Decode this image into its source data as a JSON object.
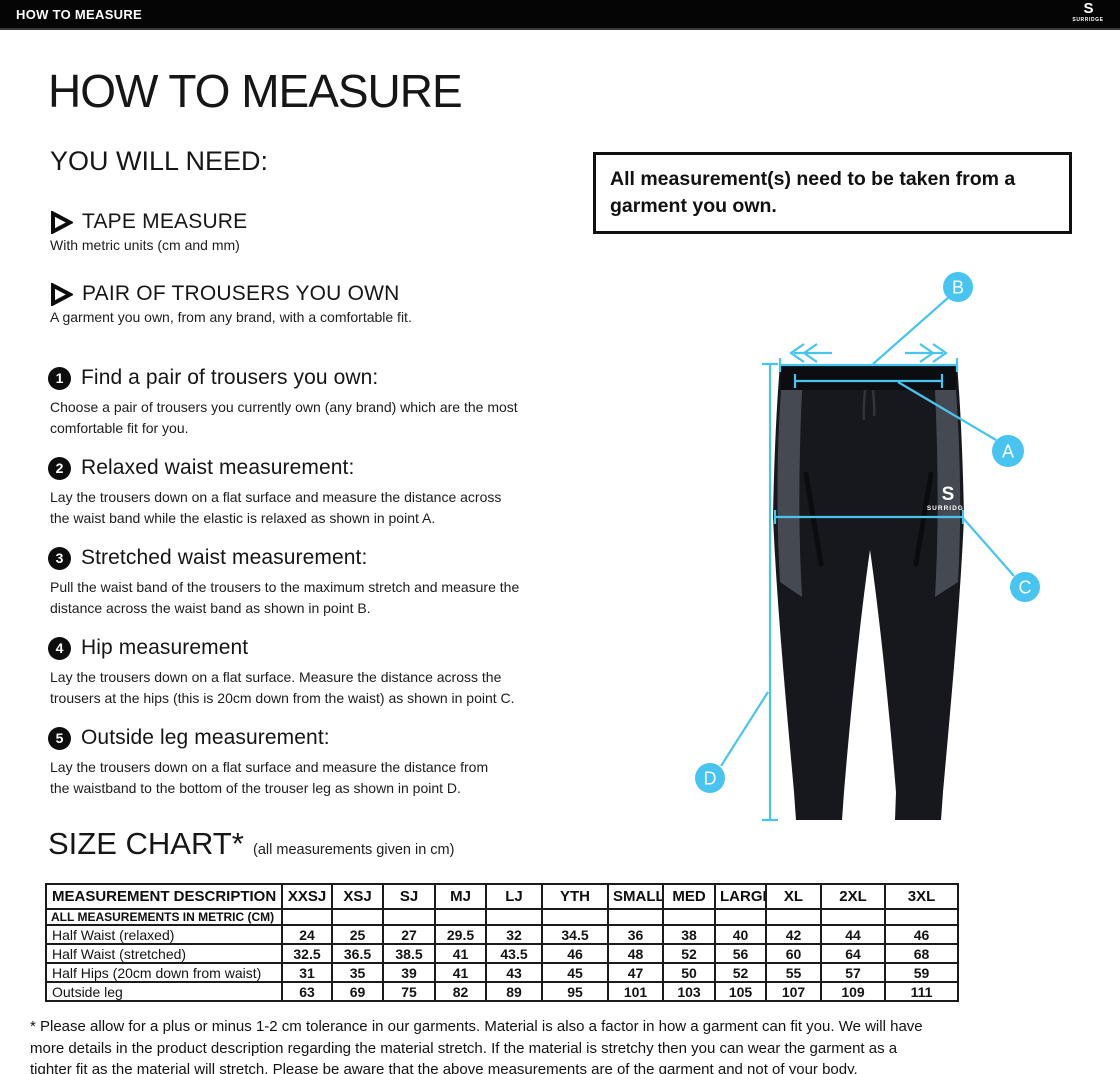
{
  "topbar": {
    "title": "HOW TO MEASURE",
    "brand_initial": "S",
    "brand_word": "SURRIDGE"
  },
  "page": {
    "title": "HOW TO MEASURE",
    "you_will_need": "YOU WILL NEED:",
    "note": "All measurement(s) need to be taken from a garment you own.",
    "size_chart_title": "SIZE CHART*",
    "size_chart_subtitle": "(all measurements given in cm)",
    "footnote": "* Please allow for a plus or minus 1-2 cm tolerance in our garments. Material is also a factor in how a garment can fit you. We will have\nmore details in the product description regarding the material stretch.  If the material is stretchy then you can wear the garment as a\ntighter fit as the material will stretch.  Please be aware that the above measurements are of the garment and not of your body."
  },
  "needs": [
    {
      "label": "TAPE MEASURE",
      "sub": "With metric units (cm and mm)"
    },
    {
      "label": "PAIR OF TROUSERS YOU OWN",
      "sub": "A garment you own, from any brand, with a comfortable fit."
    }
  ],
  "steps": [
    {
      "num": "1",
      "title": "Find a pair of trousers you own:",
      "body": "Choose a pair of trousers you currently own (any brand) which are the most\ncomfortable fit for you."
    },
    {
      "num": "2",
      "title": "Relaxed waist measurement:",
      "body": "Lay the trousers down on a flat surface and measure the distance across\nthe waist band while the elastic is relaxed as shown in point A."
    },
    {
      "num": "3",
      "title": "Stretched waist measurement:",
      "body": "Pull the waist band of the trousers to the maximum stretch and measure the\ndistance across the waist band as shown in point B."
    },
    {
      "num": "4",
      "title": "Hip measurement",
      "body": "Lay the trousers down on a flat surface. Measure the distance across the\ntrousers at the hips (this is 20cm down from the waist)  as shown in point C."
    },
    {
      "num": "5",
      "title": "Outside leg measurement:",
      "body": "Lay the trousers down on a flat surface and measure the distance from\nthe waistband to the bottom of the trouser  leg as shown in point D."
    }
  ],
  "figure": {
    "accent": "#47c4ef",
    "annotations": [
      "A",
      "B",
      "C",
      "D"
    ],
    "garment_brand_initial": "S",
    "garment_brand_word": "SURRIDGE"
  },
  "size_chart": {
    "description_header": "MEASUREMENT DESCRIPTION",
    "metric_row_label": "ALL MEASUREMENTS IN METRIC (CM)",
    "sizes": [
      "XXSJ",
      "XSJ",
      "SJ",
      "MJ",
      "LJ",
      "YTH",
      "SMALL",
      "MED",
      "LARGE",
      "XL",
      "2XL",
      "3XL"
    ],
    "rows": [
      {
        "label": "Half Waist (relaxed)",
        "values": [
          "24",
          "25",
          "27",
          "29.5",
          "32",
          "34.5",
          "36",
          "38",
          "40",
          "42",
          "44",
          "46"
        ]
      },
      {
        "label": "Half Waist (stretched)",
        "values": [
          "32.5",
          "36.5",
          "38.5",
          "41",
          "43.5",
          "46",
          "48",
          "52",
          "56",
          "60",
          "64",
          "68"
        ]
      },
      {
        "label": "Half Hips (20cm down from waist)",
        "values": [
          "31",
          "35",
          "39",
          "41",
          "43",
          "45",
          "47",
          "50",
          "52",
          "55",
          "57",
          "59"
        ]
      },
      {
        "label": "Outside leg",
        "values": [
          "63",
          "69",
          "75",
          "82",
          "89",
          "95",
          "101",
          "103",
          "105",
          "107",
          "109",
          "111"
        ]
      }
    ]
  }
}
